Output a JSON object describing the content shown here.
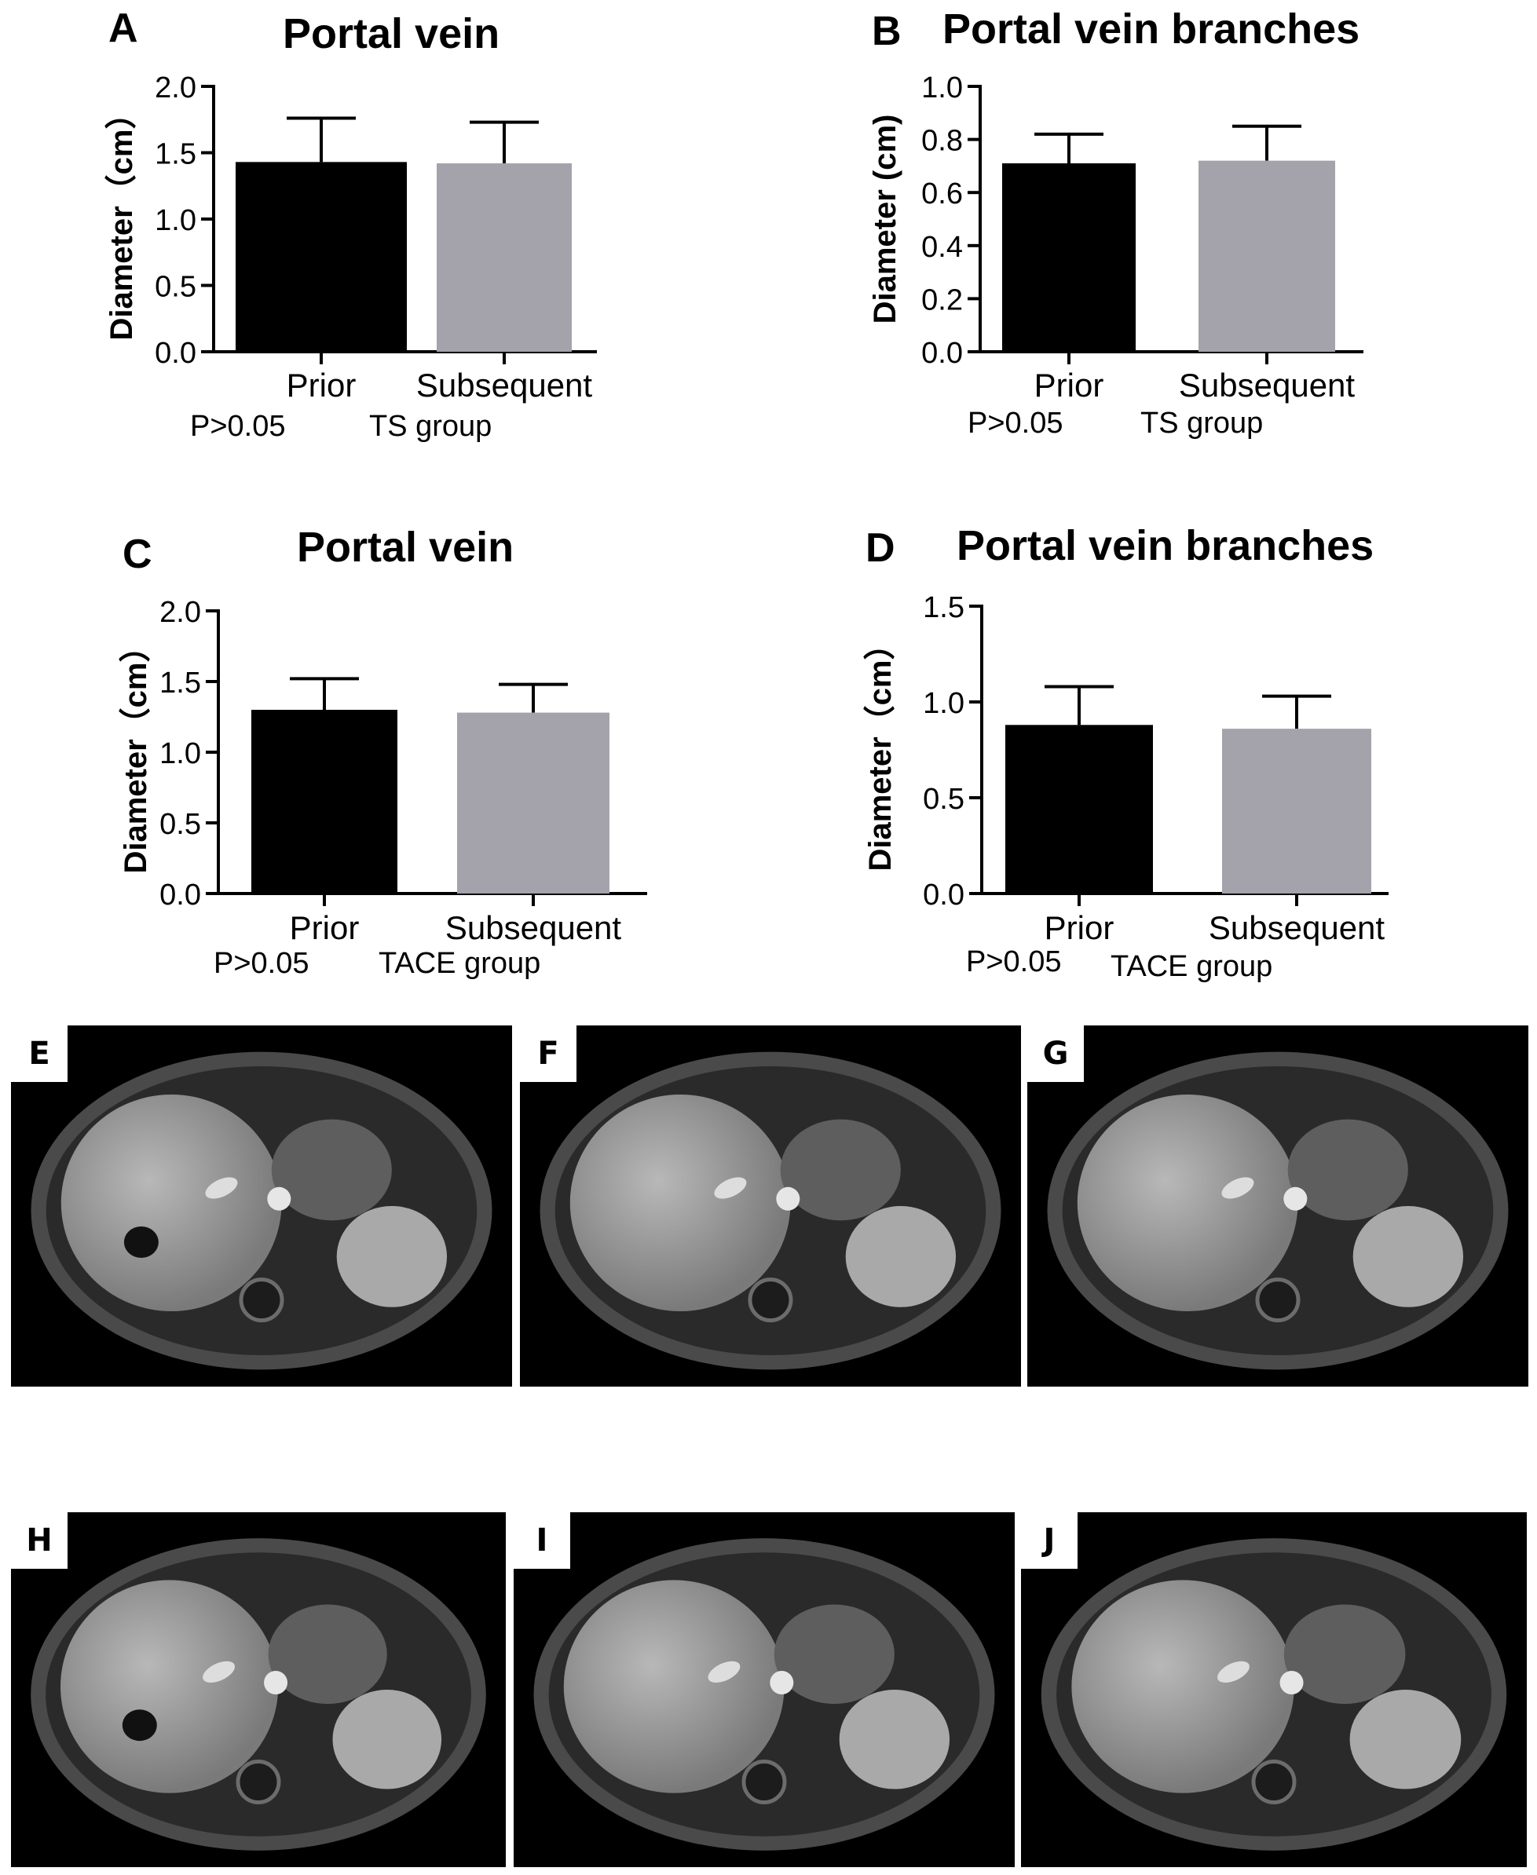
{
  "chart_data": [
    {
      "panel": "A",
      "type": "bar",
      "title": "Portal vein",
      "ylabel": "Diameter（cm）",
      "xlabel": "",
      "categories": [
        "Prior",
        "Subsequent"
      ],
      "values": [
        1.43,
        1.42
      ],
      "errors": [
        0.33,
        0.31
      ],
      "bar_colors": [
        "#000000",
        "#a4a3ab"
      ],
      "ylim": [
        0,
        2.0
      ],
      "yticks": [
        "0.0",
        "0.5",
        "1.0",
        "1.5",
        "2.0"
      ],
      "note_left": "P>0.05",
      "note_right": "TS group"
    },
    {
      "panel": "B",
      "type": "bar",
      "title": "Portal vein branches",
      "ylabel": "Diameter (cm)",
      "xlabel": "",
      "categories": [
        "Prior",
        "Subsequent"
      ],
      "values": [
        0.71,
        0.72
      ],
      "errors": [
        0.11,
        0.13
      ],
      "bar_colors": [
        "#000000",
        "#a4a3ab"
      ],
      "ylim": [
        0,
        1.0
      ],
      "yticks": [
        "0.0",
        "0.2",
        "0.4",
        "0.6",
        "0.8",
        "1.0"
      ],
      "note_left": "P>0.05",
      "note_right": "TS group"
    },
    {
      "panel": "C",
      "type": "bar",
      "title": "Portal vein",
      "ylabel": "Diameter（cm）",
      "xlabel": "",
      "categories": [
        "Prior",
        "Subsequent"
      ],
      "values": [
        1.3,
        1.28
      ],
      "errors": [
        0.22,
        0.2
      ],
      "bar_colors": [
        "#000000",
        "#a4a3ab"
      ],
      "ylim": [
        0,
        2.0
      ],
      "yticks": [
        "0.0",
        "0.5",
        "1.0",
        "1.5",
        "2.0"
      ],
      "note_left": "P>0.05",
      "note_right": "TACE  group"
    },
    {
      "panel": "D",
      "type": "bar",
      "title": "Portal vein branches",
      "ylabel": "Diameter（cm）",
      "xlabel": "",
      "categories": [
        "Prior",
        "Subsequent"
      ],
      "values": [
        0.88,
        0.86
      ],
      "errors": [
        0.2,
        0.17
      ],
      "bar_colors": [
        "#000000",
        "#a4a3ab"
      ],
      "ylim": [
        0,
        1.5
      ],
      "yticks": [
        "0.0",
        "0.5",
        "1.0",
        "1.5"
      ],
      "note_left": "P>0.05",
      "note_right": "TACE group"
    }
  ],
  "images": [
    {
      "label": "E",
      "icon": "mri-axial-abdomen-image"
    },
    {
      "label": "F",
      "icon": "mri-axial-abdomen-image"
    },
    {
      "label": "G",
      "icon": "mri-axial-abdomen-image"
    },
    {
      "label": "H",
      "icon": "mri-axial-abdomen-image"
    },
    {
      "label": "I",
      "icon": "mri-axial-abdomen-image"
    },
    {
      "label": "J",
      "icon": "mri-axial-abdomen-image"
    }
  ]
}
